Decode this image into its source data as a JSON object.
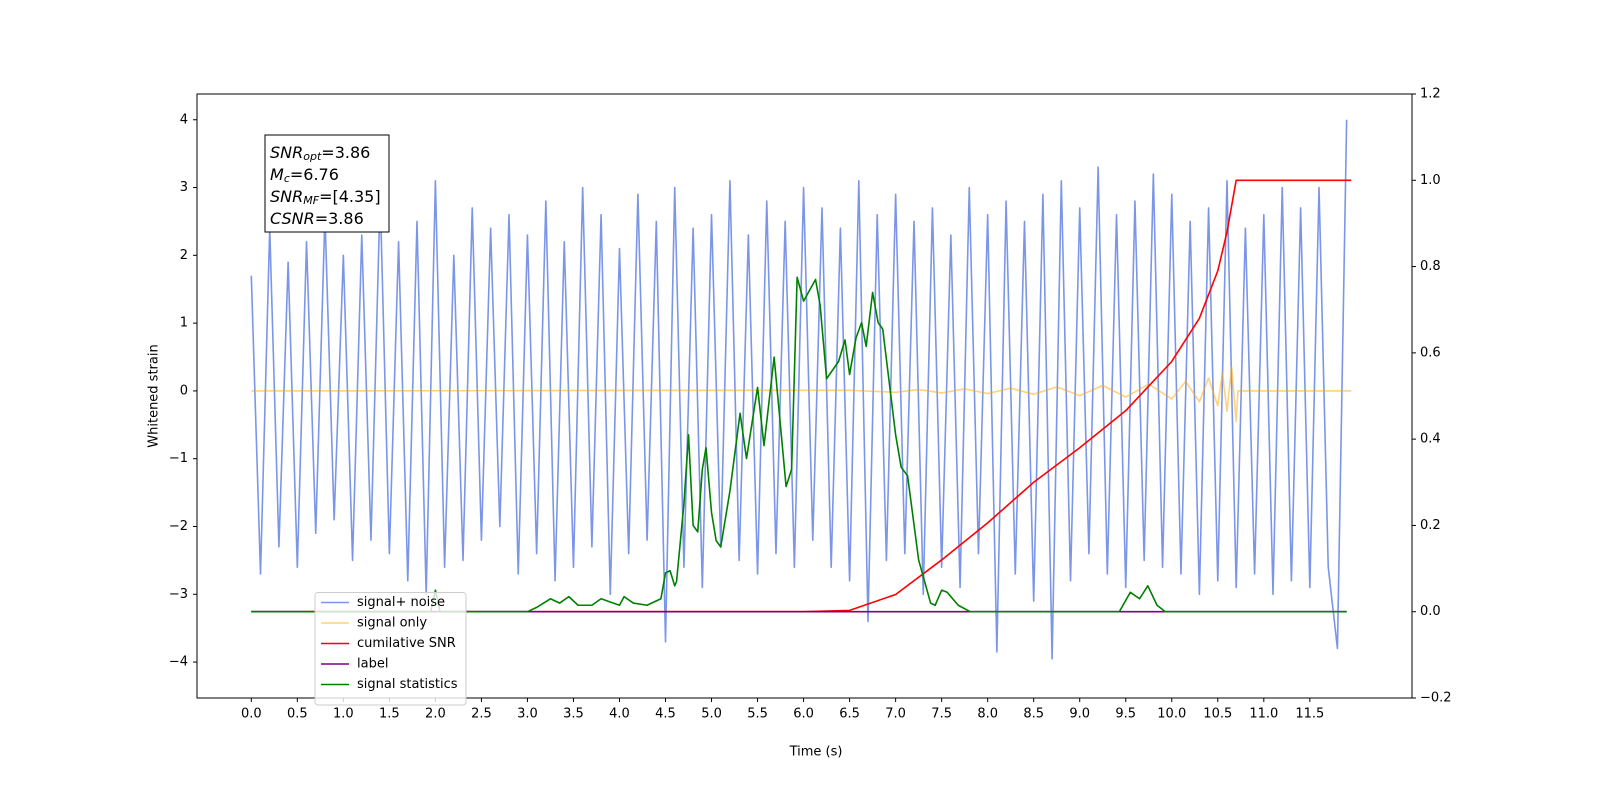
{
  "chart_data": {
    "type": "line",
    "xlabel": "Time (s)",
    "ylabel": "Whitened strain",
    "xlim": [
      -0.59,
      12.61
    ],
    "ylim": [
      -4.53,
      4.38
    ],
    "y2lim": [
      -0.2,
      1.2
    ],
    "xticks": [
      {
        "value": 0,
        "label": "0.0"
      },
      {
        "value": 0.5,
        "label": "0.5"
      },
      {
        "value": 1,
        "label": "1.0"
      },
      {
        "value": 1.5,
        "label": "1.5"
      },
      {
        "value": 2,
        "label": "2.0"
      },
      {
        "value": 2.5,
        "label": "2.5"
      },
      {
        "value": 3,
        "label": "3.0"
      },
      {
        "value": 3.5,
        "label": "3.5"
      },
      {
        "value": 4,
        "label": "4.0"
      },
      {
        "value": 4.5,
        "label": "4.5"
      },
      {
        "value": 5,
        "label": "5.0"
      },
      {
        "value": 5.5,
        "label": "5.5"
      },
      {
        "value": 6,
        "label": "6.0"
      },
      {
        "value": 6.5,
        "label": "6.5"
      },
      {
        "value": 7,
        "label": "7.0"
      },
      {
        "value": 7.5,
        "label": "7.5"
      },
      {
        "value": 8,
        "label": "8.0"
      },
      {
        "value": 8.5,
        "label": "8.5"
      },
      {
        "value": 9,
        "label": "9.0"
      },
      {
        "value": 9.5,
        "label": "9.5"
      },
      {
        "value": 10,
        "label": "10.0"
      },
      {
        "value": 10.5,
        "label": "10.5"
      },
      {
        "value": 11,
        "label": "11.0"
      },
      {
        "value": 11.5,
        "label": "11.5"
      }
    ],
    "yticks": [
      {
        "value": -4,
        "label": "−4"
      },
      {
        "value": -3,
        "label": "−3"
      },
      {
        "value": -2,
        "label": "−2"
      },
      {
        "value": -1,
        "label": "−1"
      },
      0,
      1,
      2,
      3,
      4
    ],
    "y2ticks": [
      {
        "value": -0.2,
        "label": "−0.2"
      },
      {
        "value": 0,
        "label": "0.0"
      },
      0.2,
      0.4,
      0.6,
      0.8,
      {
        "value": 1,
        "label": "1.0"
      },
      1.2
    ],
    "legend": "lower left",
    "annotation": [
      {
        "main": "SNR",
        "sub": "opt",
        "rest": "=3.86"
      },
      {
        "main": "M",
        "sub": "c",
        "rest": "=6.76"
      },
      {
        "main": "SNR",
        "sub": "MF",
        "rest": "=[4.35]"
      },
      {
        "main": "CSNR",
        "rest": "=3.86"
      }
    ],
    "series": [
      {
        "name": "signal+ noise",
        "color": "#7b96e8",
        "opacity": 1,
        "x": [
          0,
          0.1,
          0.2,
          0.3,
          0.4,
          0.5,
          0.6,
          0.7,
          0.8,
          0.9,
          1,
          1.1,
          1.2,
          1.3,
          1.4,
          1.5,
          1.6,
          1.7,
          1.8,
          1.9,
          2,
          2.1,
          2.2,
          2.3,
          2.4,
          2.5,
          2.6,
          2.7,
          2.8,
          2.9,
          3,
          3.1,
          3.2,
          3.3,
          3.4,
          3.5,
          3.6,
          3.7,
          3.8,
          3.9,
          4,
          4.1,
          4.2,
          4.3,
          4.4,
          4.5,
          4.6,
          4.7,
          4.8,
          4.9,
          5,
          5.1,
          5.2,
          5.3,
          5.4,
          5.5,
          5.6,
          5.7,
          5.8,
          5.9,
          6,
          6.1,
          6.2,
          6.3,
          6.4,
          6.5,
          6.6,
          6.7,
          6.8,
          6.9,
          7,
          7.1,
          7.2,
          7.3,
          7.4,
          7.5,
          7.6,
          7.7,
          7.8,
          7.9,
          8,
          8.1,
          8.2,
          8.3,
          8.4,
          8.5,
          8.6,
          8.7,
          8.8,
          8.9,
          9,
          9.1,
          9.2,
          9.3,
          9.4,
          9.5,
          9.6,
          9.7,
          9.8,
          9.9,
          10,
          10.1,
          10.2,
          10.3,
          10.4,
          10.5,
          10.6,
          10.7,
          10.8,
          10.9,
          11,
          11.1,
          11.2,
          11.3,
          11.4,
          11.5,
          11.6,
          11.7,
          11.8,
          11.9
        ],
        "values": [
          1.7,
          -2.7,
          2.4,
          -2.3,
          1.9,
          -2.6,
          2.2,
          -2.1,
          2.6,
          -1.9,
          2.0,
          -2.5,
          2.3,
          -2.2,
          2.9,
          -2.4,
          2.2,
          -2.8,
          2.5,
          -3.0,
          3.1,
          -2.6,
          2.0,
          -2.5,
          2.7,
          -2.2,
          2.4,
          -2.0,
          2.6,
          -2.7,
          2.3,
          -2.4,
          2.8,
          -2.8,
          2.2,
          -2.6,
          3.0,
          -2.3,
          2.6,
          -3.0,
          2.1,
          -2.4,
          2.9,
          -2.2,
          2.5,
          -3.7,
          3.0,
          -2.6,
          2.4,
          -2.9,
          2.6,
          -2.3,
          3.1,
          -2.5,
          2.3,
          -2.7,
          2.8,
          -2.4,
          2.5,
          -2.6,
          3.0,
          -2.2,
          2.7,
          -2.6,
          2.4,
          -2.8,
          3.1,
          -3.4,
          2.6,
          -2.5,
          2.9,
          -2.4,
          2.5,
          -3.0,
          2.7,
          -2.6,
          2.3,
          -2.9,
          3.0,
          -2.4,
          2.6,
          -3.85,
          2.8,
          -2.7,
          2.5,
          -3.1,
          2.9,
          -3.95,
          3.1,
          -2.8,
          2.7,
          -2.4,
          3.3,
          -2.7,
          2.6,
          -2.9,
          2.8,
          -2.5,
          3.2,
          -2.6,
          2.9,
          -2.7,
          2.5,
          -3.0,
          2.7,
          -2.8,
          3.1,
          -2.9,
          2.4,
          -2.7,
          2.6,
          -3.0,
          3.0,
          -2.8,
          2.7,
          -2.9,
          3.0,
          -2.6,
          -3.8,
          4.0
        ]
      },
      {
        "name": "signal only",
        "color": "#ffa500",
        "opacity": 0.5,
        "x": [
          0,
          6.5,
          7,
          7.25,
          7.5,
          7.75,
          8,
          8.25,
          8.5,
          8.75,
          9,
          9.25,
          9.5,
          9.75,
          10,
          10.15,
          10.3,
          10.4,
          10.5,
          10.55,
          10.6,
          10.65,
          10.7,
          10.72,
          11.95
        ],
        "values": [
          0,
          0.01,
          -0.02,
          0.02,
          -0.03,
          0.03,
          -0.04,
          0.04,
          -0.05,
          0.06,
          -0.07,
          0.08,
          -0.09,
          0.1,
          -0.12,
          0.14,
          -0.16,
          0.19,
          -0.22,
          0.26,
          -0.3,
          0.36,
          -0.45,
          0,
          0
        ]
      },
      {
        "name": "cumilative SNR",
        "color": "#ff0000",
        "axis": "y2",
        "x": [
          0,
          6,
          6.5,
          7,
          7.5,
          8,
          8.5,
          9,
          9.5,
          10,
          10.3,
          10.5,
          10.6,
          10.7,
          11.95
        ],
        "values": [
          0,
          0,
          0.003,
          0.04,
          0.12,
          0.206,
          0.3,
          0.38,
          0.466,
          0.58,
          0.68,
          0.79,
          0.88,
          1.0,
          1.0
        ]
      },
      {
        "name": "label",
        "color": "#800080",
        "axis": "y2",
        "x": [
          0,
          11.9
        ],
        "values": [
          0,
          0
        ]
      },
      {
        "name": "signal statistics",
        "color": "#008000",
        "axis": "y2",
        "x": [
          0,
          1.95,
          2.0,
          2.05,
          3.0,
          3.1,
          3.25,
          3.35,
          3.45,
          3.55,
          3.7,
          3.8,
          4.0,
          4.05,
          4.15,
          4.3,
          4.45,
          4.5,
          4.55,
          4.6,
          4.62,
          4.7,
          4.75,
          4.8,
          4.85,
          4.9,
          4.94,
          5.0,
          5.05,
          5.1,
          5.2,
          5.31,
          5.38,
          5.5,
          5.57,
          5.68,
          5.81,
          5.87,
          5.93,
          6.0,
          6.13,
          6.18,
          6.25,
          6.38,
          6.45,
          6.5,
          6.57,
          6.63,
          6.68,
          6.75,
          6.81,
          6.86,
          7.0,
          7.06,
          7.13,
          7.25,
          7.38,
          7.43,
          7.5,
          7.56,
          7.68,
          7.81,
          9.43,
          9.55,
          9.65,
          9.74,
          9.84,
          9.93,
          11.9
        ],
        "values": [
          0,
          0,
          0.05,
          0,
          0,
          0.01,
          0.03,
          0.02,
          0.035,
          0.015,
          0.015,
          0.03,
          0.015,
          0.035,
          0.02,
          0.015,
          0.03,
          0.09,
          0.095,
          0.06,
          0.07,
          0.25,
          0.41,
          0.2,
          0.185,
          0.33,
          0.38,
          0.23,
          0.165,
          0.15,
          0.28,
          0.46,
          0.355,
          0.52,
          0.385,
          0.59,
          0.29,
          0.33,
          0.775,
          0.72,
          0.77,
          0.71,
          0.54,
          0.58,
          0.63,
          0.55,
          0.635,
          0.67,
          0.615,
          0.74,
          0.67,
          0.655,
          0.41,
          0.335,
          0.315,
          0.12,
          0.02,
          0.015,
          0.05,
          0.045,
          0.015,
          0,
          0,
          0.045,
          0.03,
          0.06,
          0.015,
          0,
          0
        ]
      }
    ]
  }
}
